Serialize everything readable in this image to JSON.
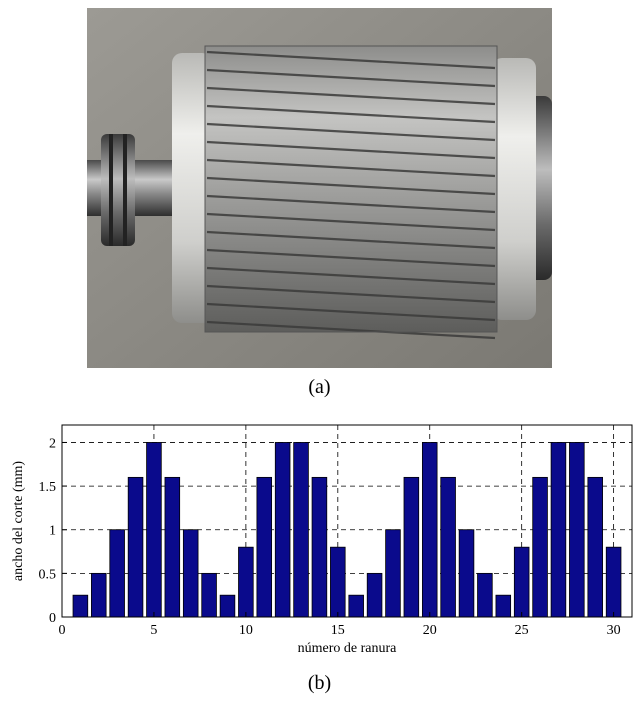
{
  "captions": {
    "a": "(a)",
    "b": "(b)"
  },
  "figure_a": {
    "subject": "skewed-slot rotor photograph"
  },
  "chart_data": {
    "type": "bar",
    "xlabel": "número de ranura",
    "ylabel": "ancho del corte (mm)",
    "xlim": [
      0,
      31
    ],
    "ylim": [
      0,
      2.2
    ],
    "xticks": [
      0,
      5,
      10,
      15,
      20,
      25,
      30
    ],
    "yticks": [
      0,
      0.5,
      1,
      1.5,
      2
    ],
    "grid": true,
    "bar_color": "#0a0a8c",
    "x": [
      1,
      2,
      3,
      4,
      5,
      6,
      7,
      8,
      9,
      10,
      11,
      12,
      13,
      14,
      15,
      16,
      17,
      18,
      19,
      20,
      21,
      22,
      23,
      24,
      25,
      26,
      27,
      28,
      29,
      30
    ],
    "values": [
      0.25,
      0.5,
      1,
      1.6,
      2,
      1.6,
      1,
      0.5,
      0.25,
      0.8,
      1.6,
      2,
      2,
      1.6,
      0.8,
      0.25,
      0.5,
      1,
      1.6,
      2,
      1.6,
      1,
      0.5,
      0.25,
      0.8,
      1.6,
      2,
      2,
      1.6,
      0.8
    ]
  }
}
